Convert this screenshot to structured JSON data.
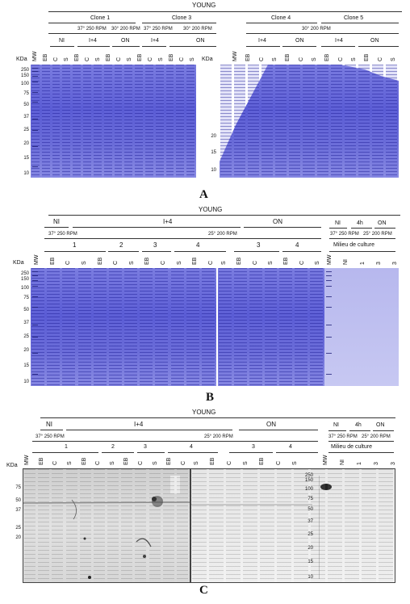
{
  "panel_a": {
    "title": "YOUNG",
    "header_row1": [
      "Clone 1",
      "Clone 3",
      "Clone 4",
      "Clone 5"
    ],
    "header_row2": [
      "37° 250 RPM",
      "30° 200 RPM",
      "37° 250 RPM",
      "30° 200 RPM",
      "30° 200 RPM"
    ],
    "header_row3": [
      "NI",
      "I+4",
      "ON",
      "I+4",
      "ON",
      "I+4",
      "ON",
      "I+4",
      "ON"
    ],
    "lanes_left": [
      "MW",
      "EB",
      "C",
      "S",
      "EB",
      "C",
      "S",
      "EB",
      "C",
      "S",
      "EB",
      "C",
      "S",
      "EB",
      "C",
      "S"
    ],
    "lanes_right": [
      "MW",
      "EB",
      "C",
      "S",
      "EB",
      "C",
      "S",
      "EB",
      "C",
      "S",
      "EB",
      "C",
      "S"
    ],
    "kda_label": "KDa",
    "mw_left": [
      "250",
      "150",
      "100",
      "75",
      "50",
      "37",
      "25",
      "20",
      "15",
      "10"
    ],
    "mw_right": [
      "20",
      "15",
      "10"
    ],
    "letter": "A"
  },
  "panel_b": {
    "title": "YOUNG",
    "header_row1": [
      "NI",
      "I+4",
      "ON",
      "NI",
      "4h",
      "ON"
    ],
    "header_row2": [
      "37° 250 RPM",
      "25° 200 RPM",
      "37° 250 RPM",
      "25° 200 RPM"
    ],
    "header_row3": [
      "1",
      "2",
      "3",
      "4",
      "3",
      "4"
    ],
    "milieu": "Milieu de culture",
    "lanes_left": [
      "MW",
      "EB",
      "C",
      "S",
      "EB",
      "C",
      "S",
      "EB",
      "C",
      "S",
      "EB",
      "C"
    ],
    "lanes_mid": [
      "S",
      "EB",
      "C",
      "S",
      "EB",
      "C",
      "S"
    ],
    "lanes_right": [
      "MW",
      "NI",
      "1",
      "3",
      "3"
    ],
    "kda_label": "KDa",
    "mw": [
      "250",
      "150",
      "100",
      "75",
      "50",
      "37",
      "25",
      "20",
      "15",
      "10"
    ],
    "letter": "B"
  },
  "panel_c": {
    "title": "YOUNG",
    "header_row1": [
      "NI",
      "I+4",
      "ON",
      "NI",
      "4h",
      "ON"
    ],
    "header_row2": [
      "37° 250 RPM",
      "25° 200 RPM",
      "37° 250 RPM",
      "25° 200 RPM"
    ],
    "header_row3": [
      "1",
      "2",
      "3",
      "4",
      "3",
      "4"
    ],
    "milieu": "Milieu de culture",
    "lanes_left": [
      "MW",
      "EB",
      "C",
      "S",
      "EB",
      "C",
      "S",
      "EB",
      "C",
      "S",
      "EB",
      "C"
    ],
    "lanes_mid": [
      "S",
      "EB",
      "C",
      "S",
      "EB",
      "C",
      "S"
    ],
    "lanes_right": [
      "MW",
      "NI",
      "1",
      "3",
      "3"
    ],
    "kda_label": "KDa",
    "mw_left": [
      "75",
      "50",
      "37",
      "25",
      "20"
    ],
    "mw_right": [
      "250",
      "150",
      "100",
      "75",
      "50",
      "37",
      "25",
      "20",
      "15",
      "10"
    ],
    "letter": "C"
  }
}
